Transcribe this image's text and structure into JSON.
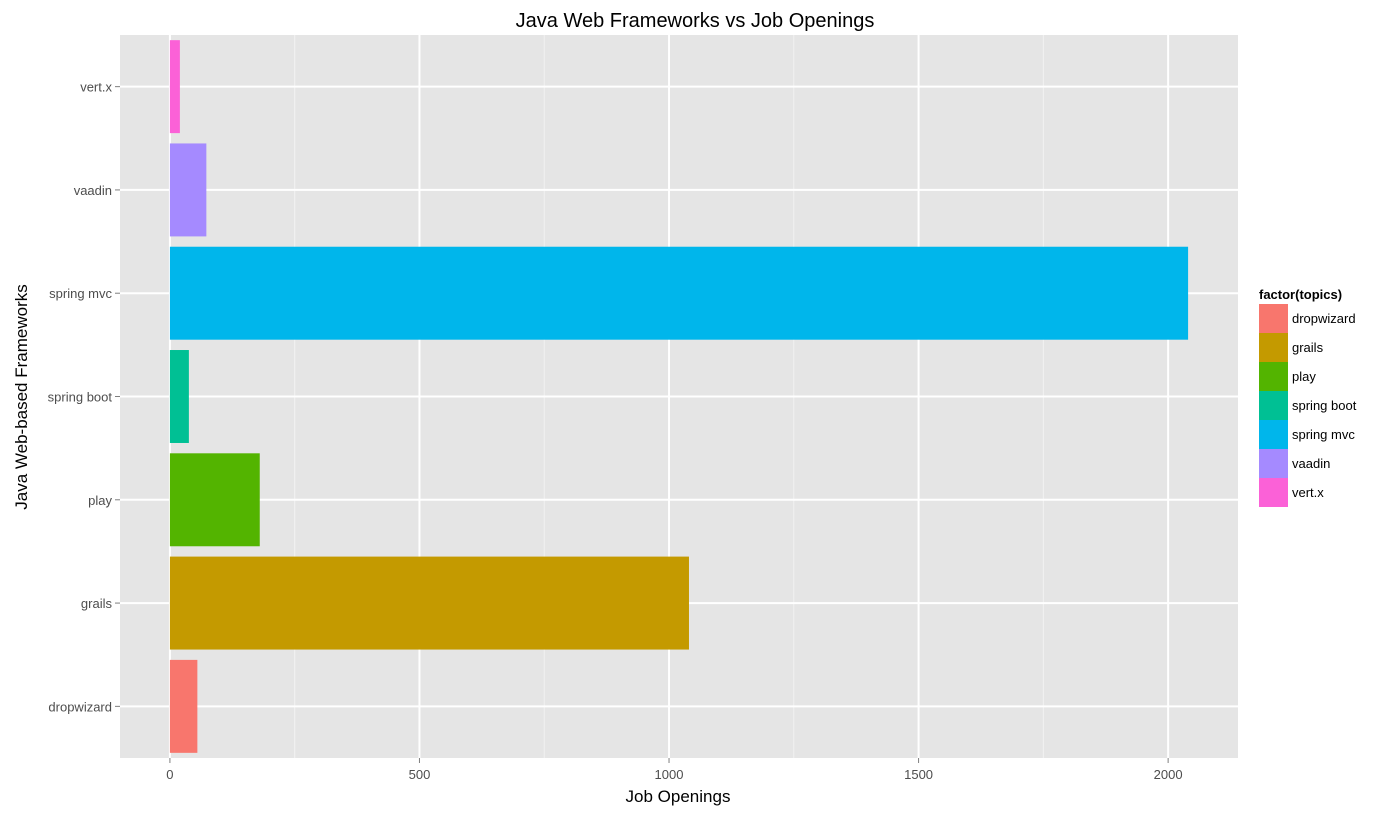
{
  "chart_data": {
    "type": "bar",
    "orientation": "horizontal",
    "title": "Java Web Frameworks vs Job Openings",
    "xlabel": "Job Openings",
    "ylabel": "Java Web-based Frameworks",
    "xlim": [
      -100,
      2140
    ],
    "xticks": [
      0,
      500,
      1000,
      1500,
      2000
    ],
    "categories": [
      "dropwizard",
      "grails",
      "play",
      "spring boot",
      "spring mvc",
      "vaadin",
      "vert.x"
    ],
    "values": [
      55,
      1040,
      180,
      38,
      2040,
      73,
      20
    ],
    "colors": [
      "#F8766D",
      "#C49A00",
      "#53B400",
      "#00C094",
      "#00B6EB",
      "#A58AFF",
      "#FB61D7"
    ],
    "grid": true,
    "legend": {
      "title": "factor(topics)",
      "position": "right",
      "entries": [
        "dropwizard",
        "grails",
        "play",
        "spring boot",
        "spring mvc",
        "vaadin",
        "vert.x"
      ]
    }
  }
}
